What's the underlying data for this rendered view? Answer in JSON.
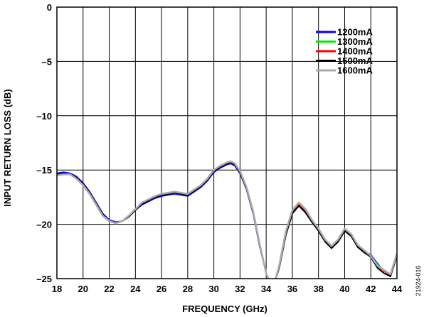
{
  "chart_data": {
    "type": "line",
    "title": "",
    "xlabel": "FREQUENCY (GHz)",
    "ylabel": "INPUT RETURN LOSS (dB)",
    "xlim": [
      18,
      44
    ],
    "ylim": [
      -25,
      0
    ],
    "xticks": [
      18,
      20,
      22,
      24,
      26,
      28,
      30,
      32,
      34,
      36,
      38,
      40,
      42,
      44
    ],
    "yticks": [
      0,
      -5,
      -10,
      -15,
      -20,
      -25
    ],
    "ytick_labels": [
      "0",
      "–5",
      "–10",
      "–15",
      "–20",
      "–25"
    ],
    "grid": true,
    "legend_position": "top-right",
    "figure_id": "21924-016",
    "x": [
      18,
      18.5,
      19,
      19.5,
      20,
      20.5,
      21,
      21.5,
      22,
      22.5,
      23,
      23.5,
      24,
      24.5,
      25,
      25.5,
      26,
      26.5,
      27,
      27.5,
      28,
      28.5,
      29,
      29.5,
      30,
      30.5,
      31,
      31.3,
      31.6,
      32,
      32.5,
      33,
      33.5,
      34,
      34.3,
      34.6,
      35,
      35.5,
      36,
      36.5,
      37,
      37.5,
      38,
      38.5,
      39,
      39.5,
      40,
      40.5,
      41,
      41.5,
      42,
      42.5,
      43,
      43.5,
      44
    ],
    "series": [
      {
        "name": "1200mA",
        "color": "#0000ff",
        "values": [
          -15.3,
          -15.2,
          -15.3,
          -15.6,
          -16.2,
          -17.0,
          -18.0,
          -19.0,
          -19.6,
          -19.8,
          -19.7,
          -19.3,
          -18.7,
          -18.2,
          -17.9,
          -17.6,
          -17.4,
          -17.3,
          -17.2,
          -17.3,
          -17.4,
          -17.0,
          -16.6,
          -16.0,
          -15.2,
          -14.8,
          -14.5,
          -14.4,
          -14.6,
          -15.3,
          -16.8,
          -19.0,
          -22.0,
          -24.5,
          -25.5,
          -25.5,
          -24.0,
          -21.0,
          -19.0,
          -18.3,
          -18.9,
          -19.8,
          -20.5,
          -21.5,
          -22.2,
          -21.6,
          -20.6,
          -21.0,
          -22.0,
          -22.5,
          -22.8,
          -23.6,
          -24.3,
          -24.6,
          -22.7
        ]
      },
      {
        "name": "1300mA",
        "color": "#00ee00",
        "values": [
          -15.4,
          -15.3,
          -15.4,
          -15.7,
          -16.3,
          -17.1,
          -18.1,
          -19.1,
          -19.7,
          -19.9,
          -19.7,
          -19.3,
          -18.7,
          -18.1,
          -17.8,
          -17.5,
          -17.3,
          -17.2,
          -17.1,
          -17.2,
          -17.3,
          -16.9,
          -16.5,
          -15.9,
          -15.1,
          -14.7,
          -14.4,
          -14.3,
          -14.5,
          -15.2,
          -16.7,
          -18.9,
          -21.9,
          -24.5,
          -25.5,
          -25.5,
          -23.9,
          -20.8,
          -18.8,
          -18.1,
          -18.7,
          -19.6,
          -20.4,
          -21.4,
          -22.1,
          -21.5,
          -20.5,
          -21.0,
          -21.9,
          -22.5,
          -22.9,
          -23.7,
          -24.2,
          -24.6,
          -22.8
        ]
      },
      {
        "name": "1400mA",
        "color": "#ff0000",
        "values": [
          -15.4,
          -15.3,
          -15.4,
          -15.7,
          -16.3,
          -17.1,
          -18.1,
          -19.1,
          -19.7,
          -19.9,
          -19.7,
          -19.3,
          -18.7,
          -18.1,
          -17.8,
          -17.5,
          -17.3,
          -17.2,
          -17.1,
          -17.2,
          -17.3,
          -16.9,
          -16.5,
          -15.9,
          -15.1,
          -14.7,
          -14.4,
          -14.3,
          -14.5,
          -15.2,
          -16.7,
          -18.9,
          -21.9,
          -24.5,
          -25.5,
          -25.5,
          -23.9,
          -20.9,
          -18.9,
          -18.2,
          -18.8,
          -19.7,
          -20.5,
          -21.5,
          -22.1,
          -21.5,
          -20.5,
          -21.0,
          -22.0,
          -22.5,
          -22.9,
          -23.8,
          -24.3,
          -24.7,
          -22.8
        ]
      },
      {
        "name": "1500mA",
        "color": "#000000",
        "values": [
          -15.4,
          -15.3,
          -15.4,
          -15.7,
          -16.3,
          -17.1,
          -18.1,
          -19.1,
          -19.7,
          -19.9,
          -19.7,
          -19.3,
          -18.7,
          -18.1,
          -17.8,
          -17.5,
          -17.3,
          -17.2,
          -17.1,
          -17.2,
          -17.3,
          -16.9,
          -16.5,
          -15.9,
          -15.1,
          -14.7,
          -14.4,
          -14.3,
          -14.5,
          -15.2,
          -16.7,
          -18.9,
          -21.9,
          -24.5,
          -25.5,
          -25.5,
          -24.0,
          -21.0,
          -19.0,
          -18.3,
          -18.9,
          -19.8,
          -20.6,
          -21.6,
          -22.2,
          -21.6,
          -20.6,
          -21.1,
          -22.1,
          -22.6,
          -23.0,
          -24.0,
          -24.5,
          -24.8,
          -22.9
        ]
      },
      {
        "name": "1600mA",
        "color": "#aaaaaa",
        "values": [
          -15.5,
          -15.4,
          -15.4,
          -15.8,
          -16.4,
          -17.2,
          -18.2,
          -19.2,
          -19.7,
          -19.9,
          -19.7,
          -19.2,
          -18.6,
          -18.0,
          -17.7,
          -17.4,
          -17.2,
          -17.1,
          -17.0,
          -17.1,
          -17.2,
          -16.8,
          -16.4,
          -15.8,
          -15.0,
          -14.6,
          -14.3,
          -14.2,
          -14.4,
          -15.1,
          -16.6,
          -18.8,
          -21.8,
          -24.5,
          -25.5,
          -25.5,
          -23.8,
          -20.7,
          -18.7,
          -18.0,
          -18.6,
          -19.6,
          -20.4,
          -21.4,
          -22.0,
          -21.4,
          -20.4,
          -20.9,
          -21.9,
          -22.4,
          -22.9,
          -23.8,
          -24.2,
          -24.6,
          -22.7
        ]
      }
    ]
  }
}
